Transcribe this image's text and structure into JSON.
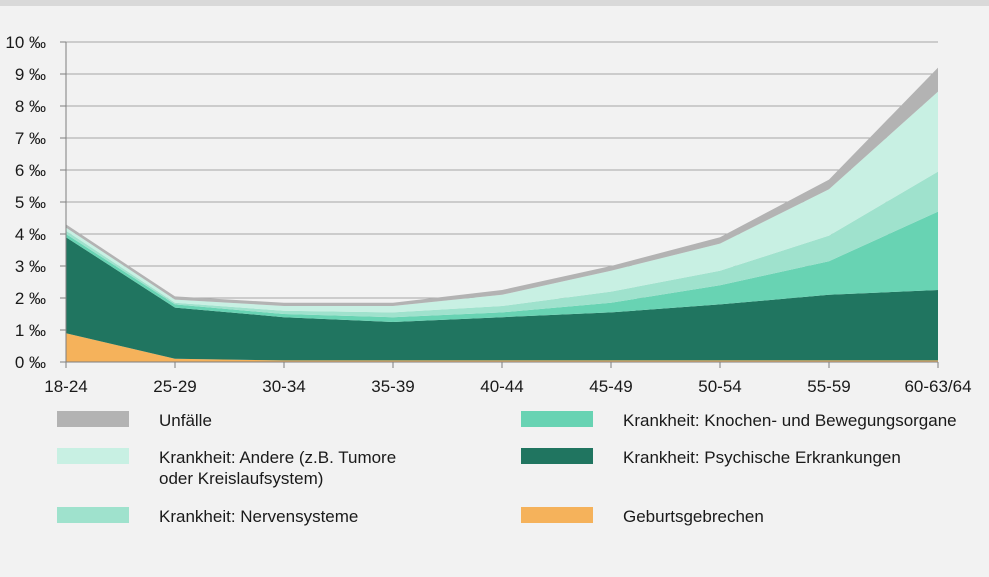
{
  "chart_data": {
    "type": "area",
    "stacked": true,
    "categories": [
      "18-24",
      "25-29",
      "30-34",
      "35-39",
      "40-44",
      "45-49",
      "50-54",
      "55-59",
      "60-63/64"
    ],
    "y_ticks": [
      "0 ‰",
      "1 ‰",
      "2 ‰",
      "3 ‰",
      "4 ‰",
      "5 ‰",
      "6 ‰",
      "7 ‰",
      "8 ‰",
      "9 ‰",
      "10 ‰"
    ],
    "ylim": [
      0,
      10
    ],
    "grid": true,
    "legend_position": "bottom",
    "series": [
      {
        "name": "Geburtsgebrechen",
        "color": "#f5b25b",
        "values": [
          0.9,
          0.1,
          0.05,
          0.05,
          0.05,
          0.05,
          0.05,
          0.05,
          0.05
        ]
      },
      {
        "name": "Krankheit: Psychische Erkrankungen",
        "color": "#207560",
        "values": [
          3.0,
          1.6,
          1.35,
          1.2,
          1.35,
          1.5,
          1.75,
          2.05,
          2.2
        ]
      },
      {
        "name": "Krankheit: Knochen- und Bewegungsorgane",
        "color": "#68d3b3",
        "values": [
          0.1,
          0.1,
          0.1,
          0.15,
          0.15,
          0.3,
          0.6,
          1.05,
          2.45
        ]
      },
      {
        "name": "Krankheit: Nervensysteme",
        "color": "#9fe2cd",
        "values": [
          0.1,
          0.05,
          0.1,
          0.15,
          0.2,
          0.35,
          0.45,
          0.8,
          1.25
        ]
      },
      {
        "name": "Krankheit: Andere (z.B. Tumore\noder Kreislaufsystem)",
        "color": "#c8f0e3",
        "values": [
          0.1,
          0.1,
          0.15,
          0.2,
          0.35,
          0.65,
          0.85,
          1.45,
          2.5
        ]
      },
      {
        "name": "Unfälle",
        "color": "#b3b3b3",
        "values": [
          0.1,
          0.1,
          0.1,
          0.1,
          0.15,
          0.15,
          0.2,
          0.3,
          0.75
        ]
      }
    ]
  },
  "legend": {
    "items": [
      {
        "label": "Unfälle",
        "color": "#b3b3b3"
      },
      {
        "label": "Krankheit: Knochen- und Bewegungsorgane",
        "color": "#68d3b3"
      },
      {
        "label": "Krankheit: Andere (z.B. Tumore\noder Kreislaufsystem)",
        "color": "#c8f0e3"
      },
      {
        "label": "Krankheit: Psychische Erkrankungen",
        "color": "#207560"
      },
      {
        "label": "Krankheit: Nervensysteme",
        "color": "#9fe2cd"
      },
      {
        "label": "Geburtsgebrechen",
        "color": "#f5b25b"
      }
    ]
  }
}
